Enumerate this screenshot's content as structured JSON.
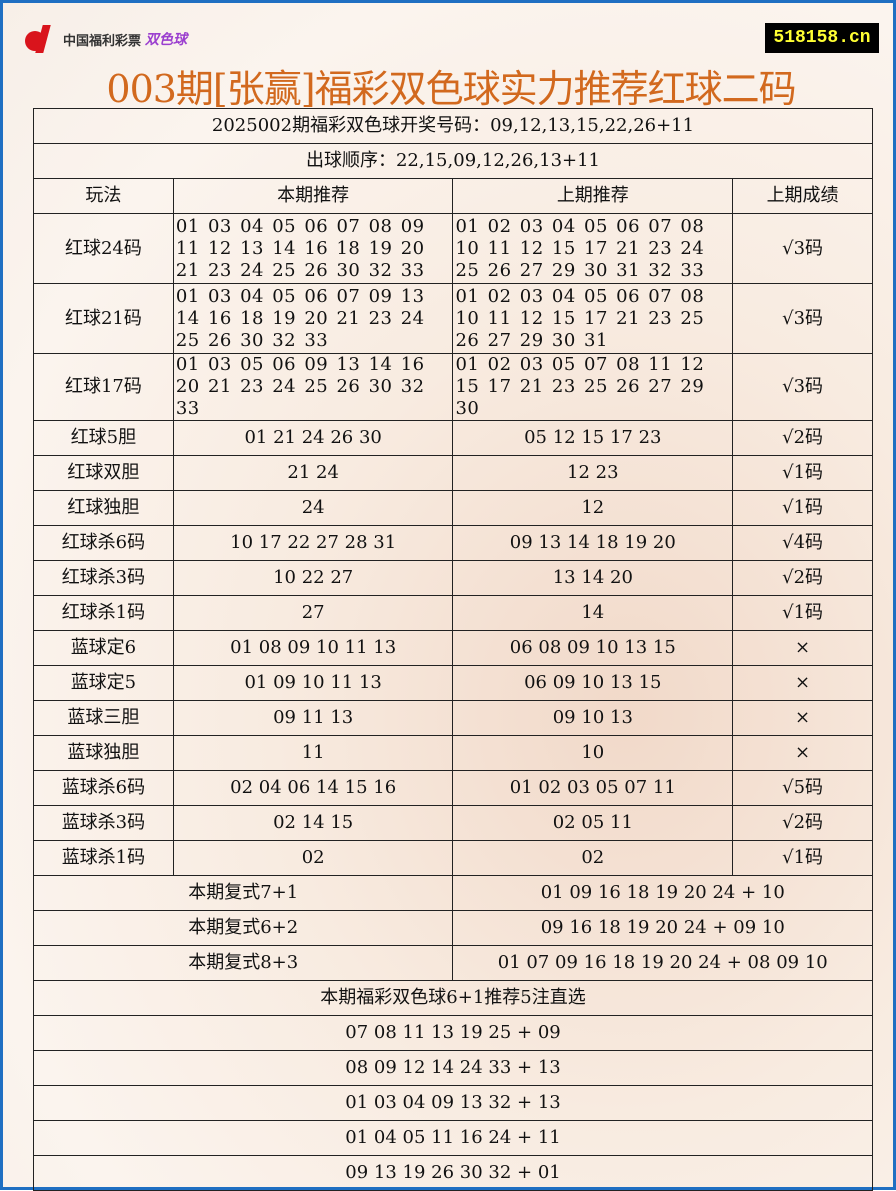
{
  "header": {
    "logo_text": "中国福利彩票",
    "logo_ssq": "双色球",
    "site": "518158.cn",
    "title": "003期[张赢]福彩双色球实力推荐红球二码"
  },
  "draw": {
    "result": "2025002期福彩双色球开奖号码：09,12,13,15,22,26+11",
    "order": "出球顺序：22,15,09,12,26,13+11"
  },
  "columns": [
    "玩法",
    "本期推荐",
    "上期推荐",
    "上期成绩"
  ],
  "rows": [
    {
      "type": "红球24码",
      "current": "01 03 04 05 06 07 08 09 11 12 13 14 16 18 19 20 21 23 24 25 26 30 32 33",
      "previous": "01 02 03 04 05 06 07 08 10 11 12 15 17 21 23 24 25 26 27 29 30 31 32 33",
      "result": "√3码"
    },
    {
      "type": "红球21码",
      "current": "01 03 04 05 06 07 09 13 14 16 18 19 20 21 23 24 25 26 30 32 33",
      "previous": "01 02 03 04 05 06 07 08 10 11 12 15 17 21 23 25 26 27 29 30 31",
      "result": "√3码"
    },
    {
      "type": "红球17码",
      "current": "01 03 05 06 09 13 14 16 20 21 23 24 25 26 30 32 33",
      "previous": "01 02 03 05 07 08 11 12 15 17 21 23 25 26 27 29 30",
      "result": "√3码"
    },
    {
      "type": "红球5胆",
      "current": "01 21 24 26 30",
      "previous": "05 12 15 17 23",
      "result": "√2码"
    },
    {
      "type": "红球双胆",
      "current": "21 24",
      "previous": "12 23",
      "result": "√1码"
    },
    {
      "type": "红球独胆",
      "current": "24",
      "previous": "12",
      "result": "√1码"
    },
    {
      "type": "红球杀6码",
      "current": "10 17 22 27 28 31",
      "previous": "09 13 14 18 19 20",
      "result": "√4码"
    },
    {
      "type": "红球杀3码",
      "current": "10 22 27",
      "previous": "13 14 20",
      "result": "√2码"
    },
    {
      "type": "红球杀1码",
      "current": "27",
      "previous": "14",
      "result": "√1码"
    },
    {
      "type": "蓝球定6",
      "current": "01 08 09 10 11 13",
      "previous": "06 08 09 10 13 15",
      "result": "×"
    },
    {
      "type": "蓝球定5",
      "current": "01 09 10 11 13",
      "previous": "06 09 10 13 15",
      "result": "×"
    },
    {
      "type": "蓝球三胆",
      "current": "09 11 13",
      "previous": "09 10 13",
      "result": "×"
    },
    {
      "type": "蓝球独胆",
      "current": "11",
      "previous": "10",
      "result": "×"
    },
    {
      "type": "蓝球杀6码",
      "current": "02 04 06 14 15 16",
      "previous": "01 02 03 05 07 11",
      "result": "√5码"
    },
    {
      "type": "蓝球杀3码",
      "current": "02 14 15",
      "previous": "02 05 11",
      "result": "√2码"
    },
    {
      "type": "蓝球杀1码",
      "current": "02",
      "previous": "02",
      "result": "√1码"
    }
  ],
  "fushi": [
    {
      "label": "本期复式7+1",
      "numbers": "01 09 16 18 19 20 24 + 10"
    },
    {
      "label": "本期复式6+2",
      "numbers": "09 16 18 19 20 24 + 09 10"
    },
    {
      "label": "本期复式8+3",
      "numbers": "01 07 09 16 18 19 20 24 + 08 09 10"
    }
  ],
  "picks_title": "本期福彩双色球6+1推荐5注直选",
  "picks": [
    "07 08 11 13 19 25 + 09",
    "08 09 12 14 24 33 + 13",
    "01 03 04 09 13 32 + 13",
    "01 04 05 11 16 24 + 11",
    "09 13 19 26 30 32 + 01"
  ]
}
